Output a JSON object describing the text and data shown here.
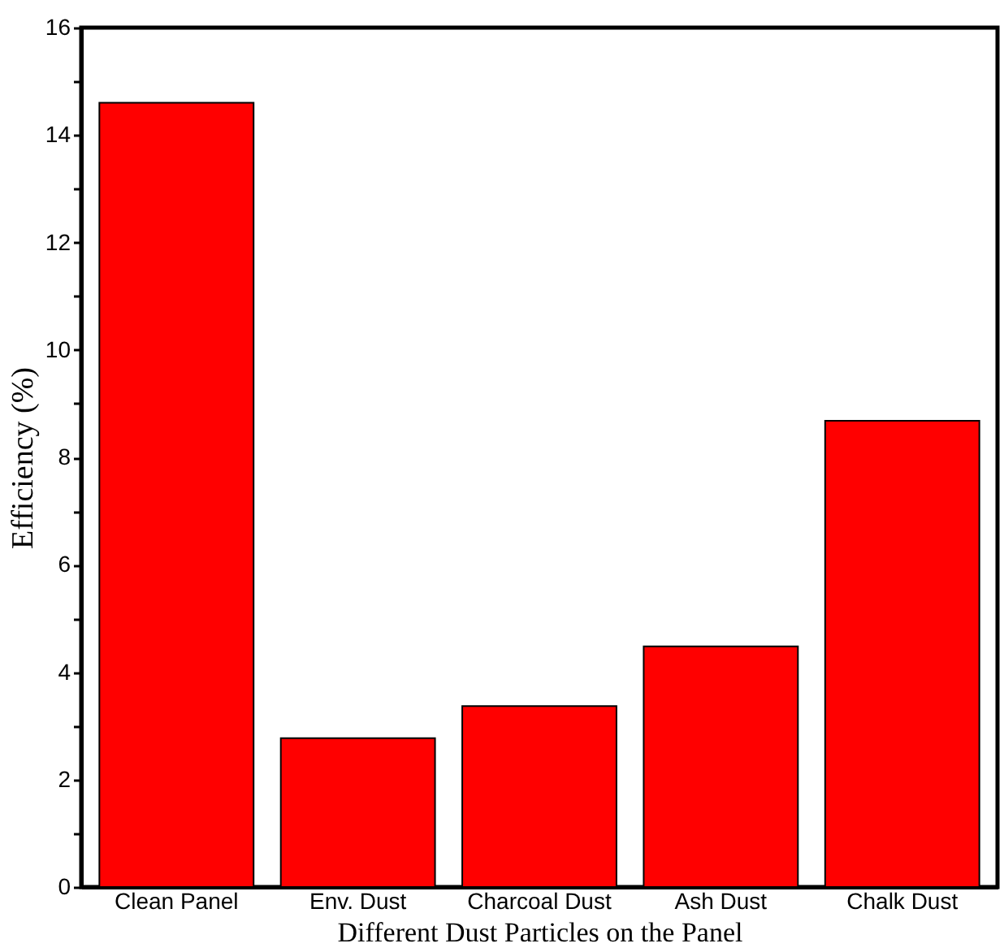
{
  "chart_data": {
    "type": "bar",
    "xlabel": "Different Dust Particles on the Panel",
    "ylabel": "Efficiency (%)",
    "categories": [
      "Clean Panel",
      "Env. Dust",
      "Charcoal Dust",
      "Ash Dust",
      "Chalk Dust"
    ],
    "values": [
      14.6,
      2.77,
      3.37,
      4.48,
      8.68
    ],
    "color": "#ff0000",
    "ylim": [
      0,
      16
    ],
    "yticks": [
      0,
      {
        "value": 1,
        "label": null
      },
      2,
      {
        "value": 3,
        "label": null
      },
      4,
      {
        "value": 5,
        "label": null
      },
      6,
      {
        "value": 7,
        "label": null
      },
      8,
      {
        "value": 9,
        "label": null
      },
      10,
      {
        "value": 11,
        "label": null
      },
      12,
      {
        "value": 13,
        "label": null
      },
      14,
      {
        "value": 15,
        "label": null
      },
      16
    ],
    "grid": false,
    "legend": false
  }
}
